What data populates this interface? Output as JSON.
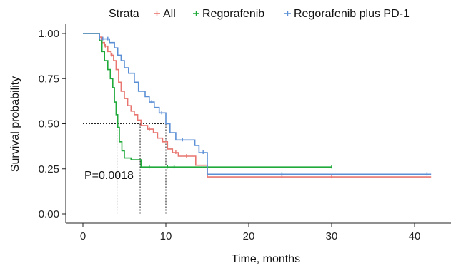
{
  "chart_data": {
    "type": "line",
    "xlabel": "Time, months",
    "ylabel": "Survival probability",
    "xlim": [
      -2,
      42
    ],
    "ylim": [
      -0.05,
      1.05
    ],
    "x_ticks": [
      0,
      10,
      20,
      30,
      40
    ],
    "y_ticks": [
      0.0,
      0.25,
      0.5,
      0.75,
      1.0
    ],
    "y_tick_labels": [
      "0.00",
      "0.25",
      "0.50",
      "0.75",
      "1.00"
    ],
    "legend": {
      "title": "Strata",
      "position": "top",
      "entries": [
        "All",
        "Regorafenib",
        "Regorafenib plus PD-1"
      ]
    },
    "annotation": "P=0.0018",
    "median_reference": {
      "y": 0.5,
      "medians": [
        4.1,
        6.9,
        10.0
      ]
    },
    "series": [
      {
        "name": "All",
        "color": "#e8756f",
        "steps": [
          [
            0,
            1.0
          ],
          [
            2.0,
            0.98
          ],
          [
            2.3,
            0.95
          ],
          [
            2.6,
            0.93
          ],
          [
            3.0,
            0.9
          ],
          [
            3.4,
            0.88
          ],
          [
            3.7,
            0.85
          ],
          [
            4.0,
            0.8
          ],
          [
            4.3,
            0.73
          ],
          [
            4.6,
            0.68
          ],
          [
            5.0,
            0.64
          ],
          [
            5.4,
            0.6
          ],
          [
            5.8,
            0.57
          ],
          [
            6.2,
            0.55
          ],
          [
            6.6,
            0.52
          ],
          [
            7.0,
            0.49
          ],
          [
            7.8,
            0.47
          ],
          [
            8.5,
            0.45
          ],
          [
            9.0,
            0.42
          ],
          [
            9.6,
            0.4
          ],
          [
            10.2,
            0.36
          ],
          [
            10.8,
            0.34
          ],
          [
            11.5,
            0.32
          ],
          [
            13.6,
            0.27
          ],
          [
            15.0,
            0.205
          ],
          [
            42.0,
            0.205
          ]
        ],
        "censors": [
          [
            2.7,
            0.93
          ],
          [
            3.5,
            0.88
          ],
          [
            8.0,
            0.47
          ],
          [
            11.2,
            0.34
          ],
          [
            12.5,
            0.32
          ],
          [
            24.0,
            0.205
          ],
          [
            30.0,
            0.205
          ]
        ]
      },
      {
        "name": "Regorafenib",
        "color": "#1faa3a",
        "steps": [
          [
            0,
            1.0
          ],
          [
            2.0,
            0.96
          ],
          [
            2.3,
            0.9
          ],
          [
            2.6,
            0.85
          ],
          [
            3.0,
            0.8
          ],
          [
            3.3,
            0.75
          ],
          [
            3.6,
            0.7
          ],
          [
            3.8,
            0.62
          ],
          [
            4.0,
            0.55
          ],
          [
            4.2,
            0.48
          ],
          [
            4.4,
            0.4
          ],
          [
            4.7,
            0.35
          ],
          [
            5.0,
            0.31
          ],
          [
            5.8,
            0.3
          ],
          [
            7.0,
            0.26
          ],
          [
            30.0,
            0.26
          ]
        ],
        "censors": [
          [
            8.0,
            0.26
          ],
          [
            10.2,
            0.26
          ],
          [
            11.0,
            0.26
          ],
          [
            30.0,
            0.26
          ]
        ]
      },
      {
        "name": "Regorafenib plus PD-1",
        "color": "#5b8fd6",
        "steps": [
          [
            0,
            1.0
          ],
          [
            2.0,
            0.97
          ],
          [
            3.2,
            0.95
          ],
          [
            3.8,
            0.92
          ],
          [
            4.2,
            0.88
          ],
          [
            4.6,
            0.85
          ],
          [
            5.0,
            0.81
          ],
          [
            5.5,
            0.78
          ],
          [
            6.2,
            0.73
          ],
          [
            6.7,
            0.68
          ],
          [
            7.5,
            0.65
          ],
          [
            8.0,
            0.62
          ],
          [
            8.6,
            0.59
          ],
          [
            9.2,
            0.56
          ],
          [
            10.0,
            0.5
          ],
          [
            10.5,
            0.45
          ],
          [
            11.2,
            0.41
          ],
          [
            12.8,
            0.41
          ],
          [
            13.5,
            0.38
          ],
          [
            14.0,
            0.34
          ],
          [
            15.0,
            0.22
          ],
          [
            42.0,
            0.22
          ]
        ],
        "censors": [
          [
            2.4,
            0.97
          ],
          [
            3.0,
            0.97
          ],
          [
            8.3,
            0.62
          ],
          [
            9.5,
            0.56
          ],
          [
            12.0,
            0.41
          ],
          [
            14.5,
            0.34
          ],
          [
            24.0,
            0.22
          ],
          [
            41.5,
            0.22
          ]
        ]
      }
    ]
  }
}
